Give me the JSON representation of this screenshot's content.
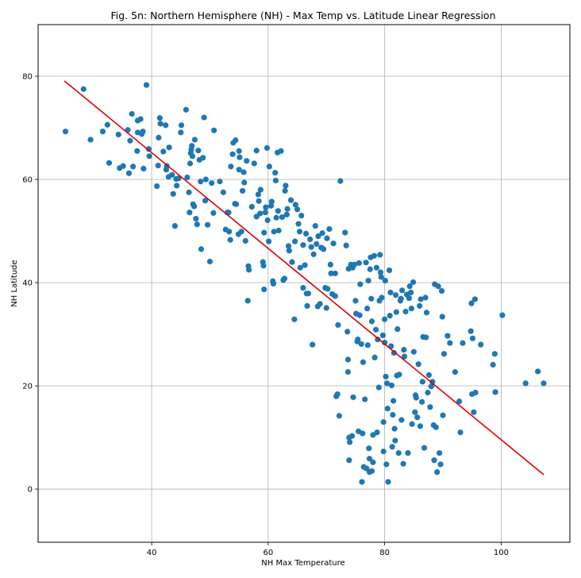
{
  "chart_data": {
    "type": "scatter",
    "title": "Fig. 5n: Northern Hemisphere (NH) - Max Temp vs. Latitude Linear Regression",
    "xlabel": "NH Max Temperature",
    "ylabel": "NH Latitude",
    "xlim": [
      20.5,
      111.8
    ],
    "ylim": [
      -10.3,
      90.0
    ],
    "xticks": [
      40,
      60,
      80,
      100
    ],
    "yticks": [
      0,
      20,
      40,
      60,
      80
    ],
    "grid": true,
    "colors": {
      "points": "#1f77b4",
      "regression": "#e00000",
      "grid": "#b0b0b0"
    },
    "regression_line": {
      "x": [
        25.0,
        107.3
      ],
      "y": [
        79.1,
        2.8
      ]
    },
    "points": [
      [
        25.2,
        69.3
      ],
      [
        28.3,
        77.5
      ],
      [
        29.5,
        67.7
      ],
      [
        31.6,
        69.3
      ],
      [
        32.4,
        70.6
      ],
      [
        32.7,
        63.2
      ],
      [
        34.3,
        68.7
      ],
      [
        34.5,
        62.2
      ],
      [
        35.1,
        62.6
      ],
      [
        35.9,
        69.6
      ],
      [
        36.1,
        61.2
      ],
      [
        36.3,
        67.5
      ],
      [
        36.6,
        72.7
      ],
      [
        36.8,
        62.5
      ],
      [
        37.5,
        65.5
      ],
      [
        37.6,
        69.1
      ],
      [
        37.6,
        71.4
      ],
      [
        38.1,
        71.7
      ],
      [
        38.3,
        68.8
      ],
      [
        38.5,
        69.3
      ],
      [
        38.6,
        62.1
      ],
      [
        39.1,
        78.3
      ],
      [
        39.5,
        65.9
      ],
      [
        39.6,
        64.5
      ],
      [
        40.9,
        58.7
      ],
      [
        41.1,
        62.7
      ],
      [
        41.2,
        68.1
      ],
      [
        41.4,
        71.9
      ],
      [
        41.5,
        70.8
      ],
      [
        42.0,
        65.4
      ],
      [
        42.4,
        70.5
      ],
      [
        42.5,
        61.9
      ],
      [
        42.6,
        62.6
      ],
      [
        42.9,
        60.5
      ],
      [
        43.0,
        66.2
      ],
      [
        43.5,
        60.9
      ],
      [
        43.7,
        57.2
      ],
      [
        44.0,
        51.0
      ],
      [
        44.2,
        60.1
      ],
      [
        44.3,
        58.8
      ],
      [
        44.6,
        60.2
      ],
      [
        45.0,
        69.1
      ],
      [
        45.1,
        70.5
      ],
      [
        45.9,
        73.5
      ],
      [
        46.1,
        60.4
      ],
      [
        46.4,
        57.5
      ],
      [
        46.5,
        53.6
      ],
      [
        46.6,
        63.1
      ],
      [
        46.7,
        65.1
      ],
      [
        46.8,
        65.8
      ],
      [
        46.9,
        66.5
      ],
      [
        47.0,
        64.5
      ],
      [
        47.1,
        55.2
      ],
      [
        47.3,
        54.8
      ],
      [
        47.4,
        67.7
      ],
      [
        47.6,
        52.4
      ],
      [
        47.8,
        51.3
      ],
      [
        48.0,
        65.6
      ],
      [
        48.2,
        63.8
      ],
      [
        48.4,
        59.6
      ],
      [
        48.5,
        46.5
      ],
      [
        48.8,
        64.2
      ],
      [
        49.0,
        72.0
      ],
      [
        49.2,
        55.9
      ],
      [
        49.3,
        60.0
      ],
      [
        49.6,
        51.2
      ],
      [
        50.0,
        44.1
      ],
      [
        50.3,
        59.3
      ],
      [
        50.6,
        53.5
      ],
      [
        50.7,
        69.5
      ],
      [
        51.7,
        59.6
      ],
      [
        52.3,
        57.5
      ],
      [
        52.7,
        50.3
      ],
      [
        53.0,
        53.6
      ],
      [
        53.2,
        53.6
      ],
      [
        53.3,
        49.9
      ],
      [
        53.5,
        48.3
      ],
      [
        53.6,
        62.5
      ],
      [
        53.9,
        64.9
      ],
      [
        54.0,
        67.1
      ],
      [
        54.3,
        55.3
      ],
      [
        54.4,
        67.6
      ],
      [
        54.5,
        55.2
      ],
      [
        54.9,
        49.4
      ],
      [
        55.0,
        61.9
      ],
      [
        55.0,
        65.5
      ],
      [
        55.1,
        64.3
      ],
      [
        55.4,
        49.9
      ],
      [
        55.6,
        57.8
      ],
      [
        55.8,
        61.4
      ],
      [
        55.9,
        59.4
      ],
      [
        56.1,
        48.1
      ],
      [
        56.3,
        63.6
      ],
      [
        56.5,
        36.5
      ],
      [
        56.6,
        43.2
      ],
      [
        56.7,
        42.5
      ],
      [
        57.2,
        54.7
      ],
      [
        57.6,
        63.1
      ],
      [
        58.0,
        65.6
      ],
      [
        58.0,
        52.8
      ],
      [
        58.3,
        57.1
      ],
      [
        58.4,
        55.8
      ],
      [
        58.6,
        53.4
      ],
      [
        58.7,
        58.0
      ],
      [
        59.1,
        44.0
      ],
      [
        59.2,
        43.3
      ],
      [
        59.3,
        38.7
      ],
      [
        59.3,
        49.7
      ],
      [
        59.5,
        53.6
      ],
      [
        59.6,
        54.6
      ],
      [
        59.8,
        66.1
      ],
      [
        59.9,
        52.1
      ],
      [
        60.1,
        48.0
      ],
      [
        60.2,
        62.5
      ],
      [
        60.5,
        54.9
      ],
      [
        60.6,
        55.7
      ],
      [
        60.8,
        40.3
      ],
      [
        60.9,
        39.8
      ],
      [
        61.0,
        49.9
      ],
      [
        61.2,
        61.3
      ],
      [
        61.3,
        59.8
      ],
      [
        61.4,
        52.6
      ],
      [
        61.6,
        65.2
      ],
      [
        61.7,
        53.9
      ],
      [
        61.8,
        50.1
      ],
      [
        62.2,
        65.5
      ],
      [
        62.4,
        52.7
      ],
      [
        62.6,
        40.5
      ],
      [
        62.8,
        40.8
      ],
      [
        62.9,
        57.8
      ],
      [
        63.0,
        58.8
      ],
      [
        63.2,
        53.2
      ],
      [
        63.3,
        54.3
      ],
      [
        63.5,
        47.1
      ],
      [
        63.6,
        46.2
      ],
      [
        63.9,
        56.0
      ],
      [
        64.1,
        44.0
      ],
      [
        64.5,
        32.9
      ],
      [
        64.6,
        48.0
      ],
      [
        64.7,
        55.1
      ],
      [
        65.0,
        54.2
      ],
      [
        65.2,
        51.4
      ],
      [
        65.4,
        49.9
      ],
      [
        65.5,
        42.9
      ],
      [
        65.7,
        53.0
      ],
      [
        66.0,
        47.3
      ],
      [
        66.0,
        39.0
      ],
      [
        66.3,
        43.4
      ],
      [
        66.5,
        49.5
      ],
      [
        66.6,
        37.9
      ],
      [
        66.7,
        35.5
      ],
      [
        66.9,
        37.9
      ],
      [
        67.2,
        48.4
      ],
      [
        67.4,
        46.9
      ],
      [
        67.6,
        28.0
      ],
      [
        67.8,
        45.5
      ],
      [
        68.1,
        51.0
      ],
      [
        68.3,
        47.5
      ],
      [
        68.5,
        35.4
      ],
      [
        68.6,
        49.0
      ],
      [
        68.9,
        35.9
      ],
      [
        69.1,
        46.8
      ],
      [
        69.3,
        49.6
      ],
      [
        69.5,
        46.5
      ],
      [
        69.8,
        39.0
      ],
      [
        70.0,
        35.1
      ],
      [
        70.1,
        48.6
      ],
      [
        70.2,
        38.8
      ],
      [
        70.5,
        50.4
      ],
      [
        70.7,
        43.5
      ],
      [
        70.8,
        41.8
      ],
      [
        71.0,
        37.8
      ],
      [
        71.2,
        47.6
      ],
      [
        71.5,
        37.4
      ],
      [
        71.5,
        41.8
      ],
      [
        71.7,
        18.0
      ],
      [
        71.9,
        18.4
      ],
      [
        72.0,
        31.8
      ],
      [
        72.2,
        14.2
      ],
      [
        72.4,
        59.7
      ],
      [
        73.2,
        49.7
      ],
      [
        73.4,
        47.2
      ],
      [
        73.6,
        30.5
      ],
      [
        73.7,
        22.7
      ],
      [
        73.7,
        25.1
      ],
      [
        73.8,
        42.7
      ],
      [
        73.9,
        10.0
      ],
      [
        73.9,
        5.6
      ],
      [
        74.0,
        9.1
      ],
      [
        74.2,
        43.5
      ],
      [
        74.4,
        10.3
      ],
      [
        74.5,
        42.9
      ],
      [
        74.6,
        17.8
      ],
      [
        74.8,
        43.5
      ],
      [
        75.0,
        36.5
      ],
      [
        75.1,
        34.0
      ],
      [
        75.3,
        28.6
      ],
      [
        75.4,
        29.0
      ],
      [
        75.5,
        11.2
      ],
      [
        75.6,
        43.8
      ],
      [
        75.7,
        33.7
      ],
      [
        75.8,
        39.7
      ],
      [
        76.0,
        28.1
      ],
      [
        76.1,
        1.4
      ],
      [
        76.2,
        10.8
      ],
      [
        76.3,
        24.6
      ],
      [
        76.4,
        4.3
      ],
      [
        76.6,
        17.4
      ],
      [
        76.8,
        43.9
      ],
      [
        76.9,
        4.0
      ],
      [
        77.0,
        35.0
      ],
      [
        77.1,
        27.9
      ],
      [
        77.2,
        40.4
      ],
      [
        77.3,
        7.9
      ],
      [
        77.4,
        3.3
      ],
      [
        77.4,
        5.9
      ],
      [
        77.5,
        42.6
      ],
      [
        77.6,
        44.9
      ],
      [
        77.7,
        36.9
      ],
      [
        77.8,
        32.5
      ],
      [
        77.8,
        3.5
      ],
      [
        78.0,
        10.5
      ],
      [
        78.0,
        5.2
      ],
      [
        78.2,
        45.2
      ],
      [
        78.3,
        25.5
      ],
      [
        78.5,
        30.9
      ],
      [
        78.6,
        42.9
      ],
      [
        78.7,
        11.0
      ],
      [
        78.8,
        29.0
      ],
      [
        79.0,
        19.7
      ],
      [
        79.1,
        36.5
      ],
      [
        79.2,
        45.4
      ],
      [
        79.3,
        42.0
      ],
      [
        79.4,
        41.1
      ],
      [
        79.5,
        37.1
      ],
      [
        79.7,
        29.8
      ],
      [
        79.8,
        13.0
      ],
      [
        79.8,
        7.3
      ],
      [
        80.0,
        32.9
      ],
      [
        80.0,
        28.4
      ],
      [
        80.1,
        40.4
      ],
      [
        80.2,
        21.8
      ],
      [
        80.3,
        4.8
      ],
      [
        80.4,
        20.5
      ],
      [
        80.5,
        15.6
      ],
      [
        80.6,
        1.4
      ],
      [
        80.8,
        42.4
      ],
      [
        80.9,
        33.6
      ],
      [
        81.0,
        38.1
      ],
      [
        81.1,
        27.7
      ],
      [
        81.2,
        20.1
      ],
      [
        81.3,
        8.2
      ],
      [
        81.4,
        14.4
      ],
      [
        81.5,
        17.1
      ],
      [
        81.6,
        26.4
      ],
      [
        81.7,
        11.7
      ],
      [
        81.8,
        9.4
      ],
      [
        81.9,
        37.6
      ],
      [
        82.0,
        34.3
      ],
      [
        82.1,
        22.0
      ],
      [
        82.2,
        31.0
      ],
      [
        82.4,
        7.0
      ],
      [
        82.5,
        22.2
      ],
      [
        82.7,
        36.5
      ],
      [
        82.8,
        36.9
      ],
      [
        82.9,
        13.4
      ],
      [
        83.0,
        38.5
      ],
      [
        83.2,
        4.9
      ],
      [
        83.3,
        27.0
      ],
      [
        83.4,
        25.7
      ],
      [
        83.6,
        34.4
      ],
      [
        83.8,
        37.7
      ],
      [
        84.0,
        7.0
      ],
      [
        84.2,
        37.0
      ],
      [
        84.3,
        39.3
      ],
      [
        84.5,
        38.1
      ],
      [
        84.6,
        35.0
      ],
      [
        84.7,
        12.6
      ],
      [
        84.9,
        40.1
      ],
      [
        85.0,
        26.6
      ],
      [
        85.2,
        14.9
      ],
      [
        85.3,
        18.2
      ],
      [
        85.4,
        17.7
      ],
      [
        85.6,
        13.9
      ],
      [
        85.8,
        24.2
      ],
      [
        86.0,
        35.5
      ],
      [
        86.1,
        12.2
      ],
      [
        86.2,
        36.8
      ],
      [
        86.4,
        16.9
      ],
      [
        86.5,
        20.8
      ],
      [
        86.6,
        29.5
      ],
      [
        86.8,
        8.0
      ],
      [
        87.0,
        37.1
      ],
      [
        87.1,
        29.4
      ],
      [
        87.2,
        34.2
      ],
      [
        87.4,
        18.7
      ],
      [
        87.6,
        22.1
      ],
      [
        87.8,
        15.9
      ],
      [
        88.0,
        19.9
      ],
      [
        88.2,
        20.8
      ],
      [
        88.4,
        12.4
      ],
      [
        88.5,
        5.6
      ],
      [
        88.6,
        39.7
      ],
      [
        88.8,
        12.0
      ],
      [
        89.0,
        3.3
      ],
      [
        89.2,
        39.3
      ],
      [
        89.4,
        7.0
      ],
      [
        89.6,
        4.8
      ],
      [
        89.8,
        38.4
      ],
      [
        89.9,
        33.4
      ],
      [
        90.0,
        14.3
      ],
      [
        90.2,
        26.2
      ],
      [
        90.8,
        29.7
      ],
      [
        91.2,
        28.3
      ],
      [
        92.1,
        22.7
      ],
      [
        92.8,
        17.0
      ],
      [
        93.0,
        11.0
      ],
      [
        93.4,
        28.3
      ],
      [
        94.8,
        30.6
      ],
      [
        94.9,
        36.0
      ],
      [
        95.0,
        18.4
      ],
      [
        95.1,
        29.2
      ],
      [
        95.3,
        14.9
      ],
      [
        95.5,
        36.8
      ],
      [
        95.6,
        18.7
      ],
      [
        96.5,
        28.0
      ],
      [
        98.6,
        24.1
      ],
      [
        98.9,
        26.2
      ],
      [
        99.0,
        18.8
      ],
      [
        100.2,
        33.7
      ],
      [
        104.2,
        20.5
      ],
      [
        106.3,
        22.8
      ],
      [
        107.3,
        20.5
      ]
    ]
  }
}
